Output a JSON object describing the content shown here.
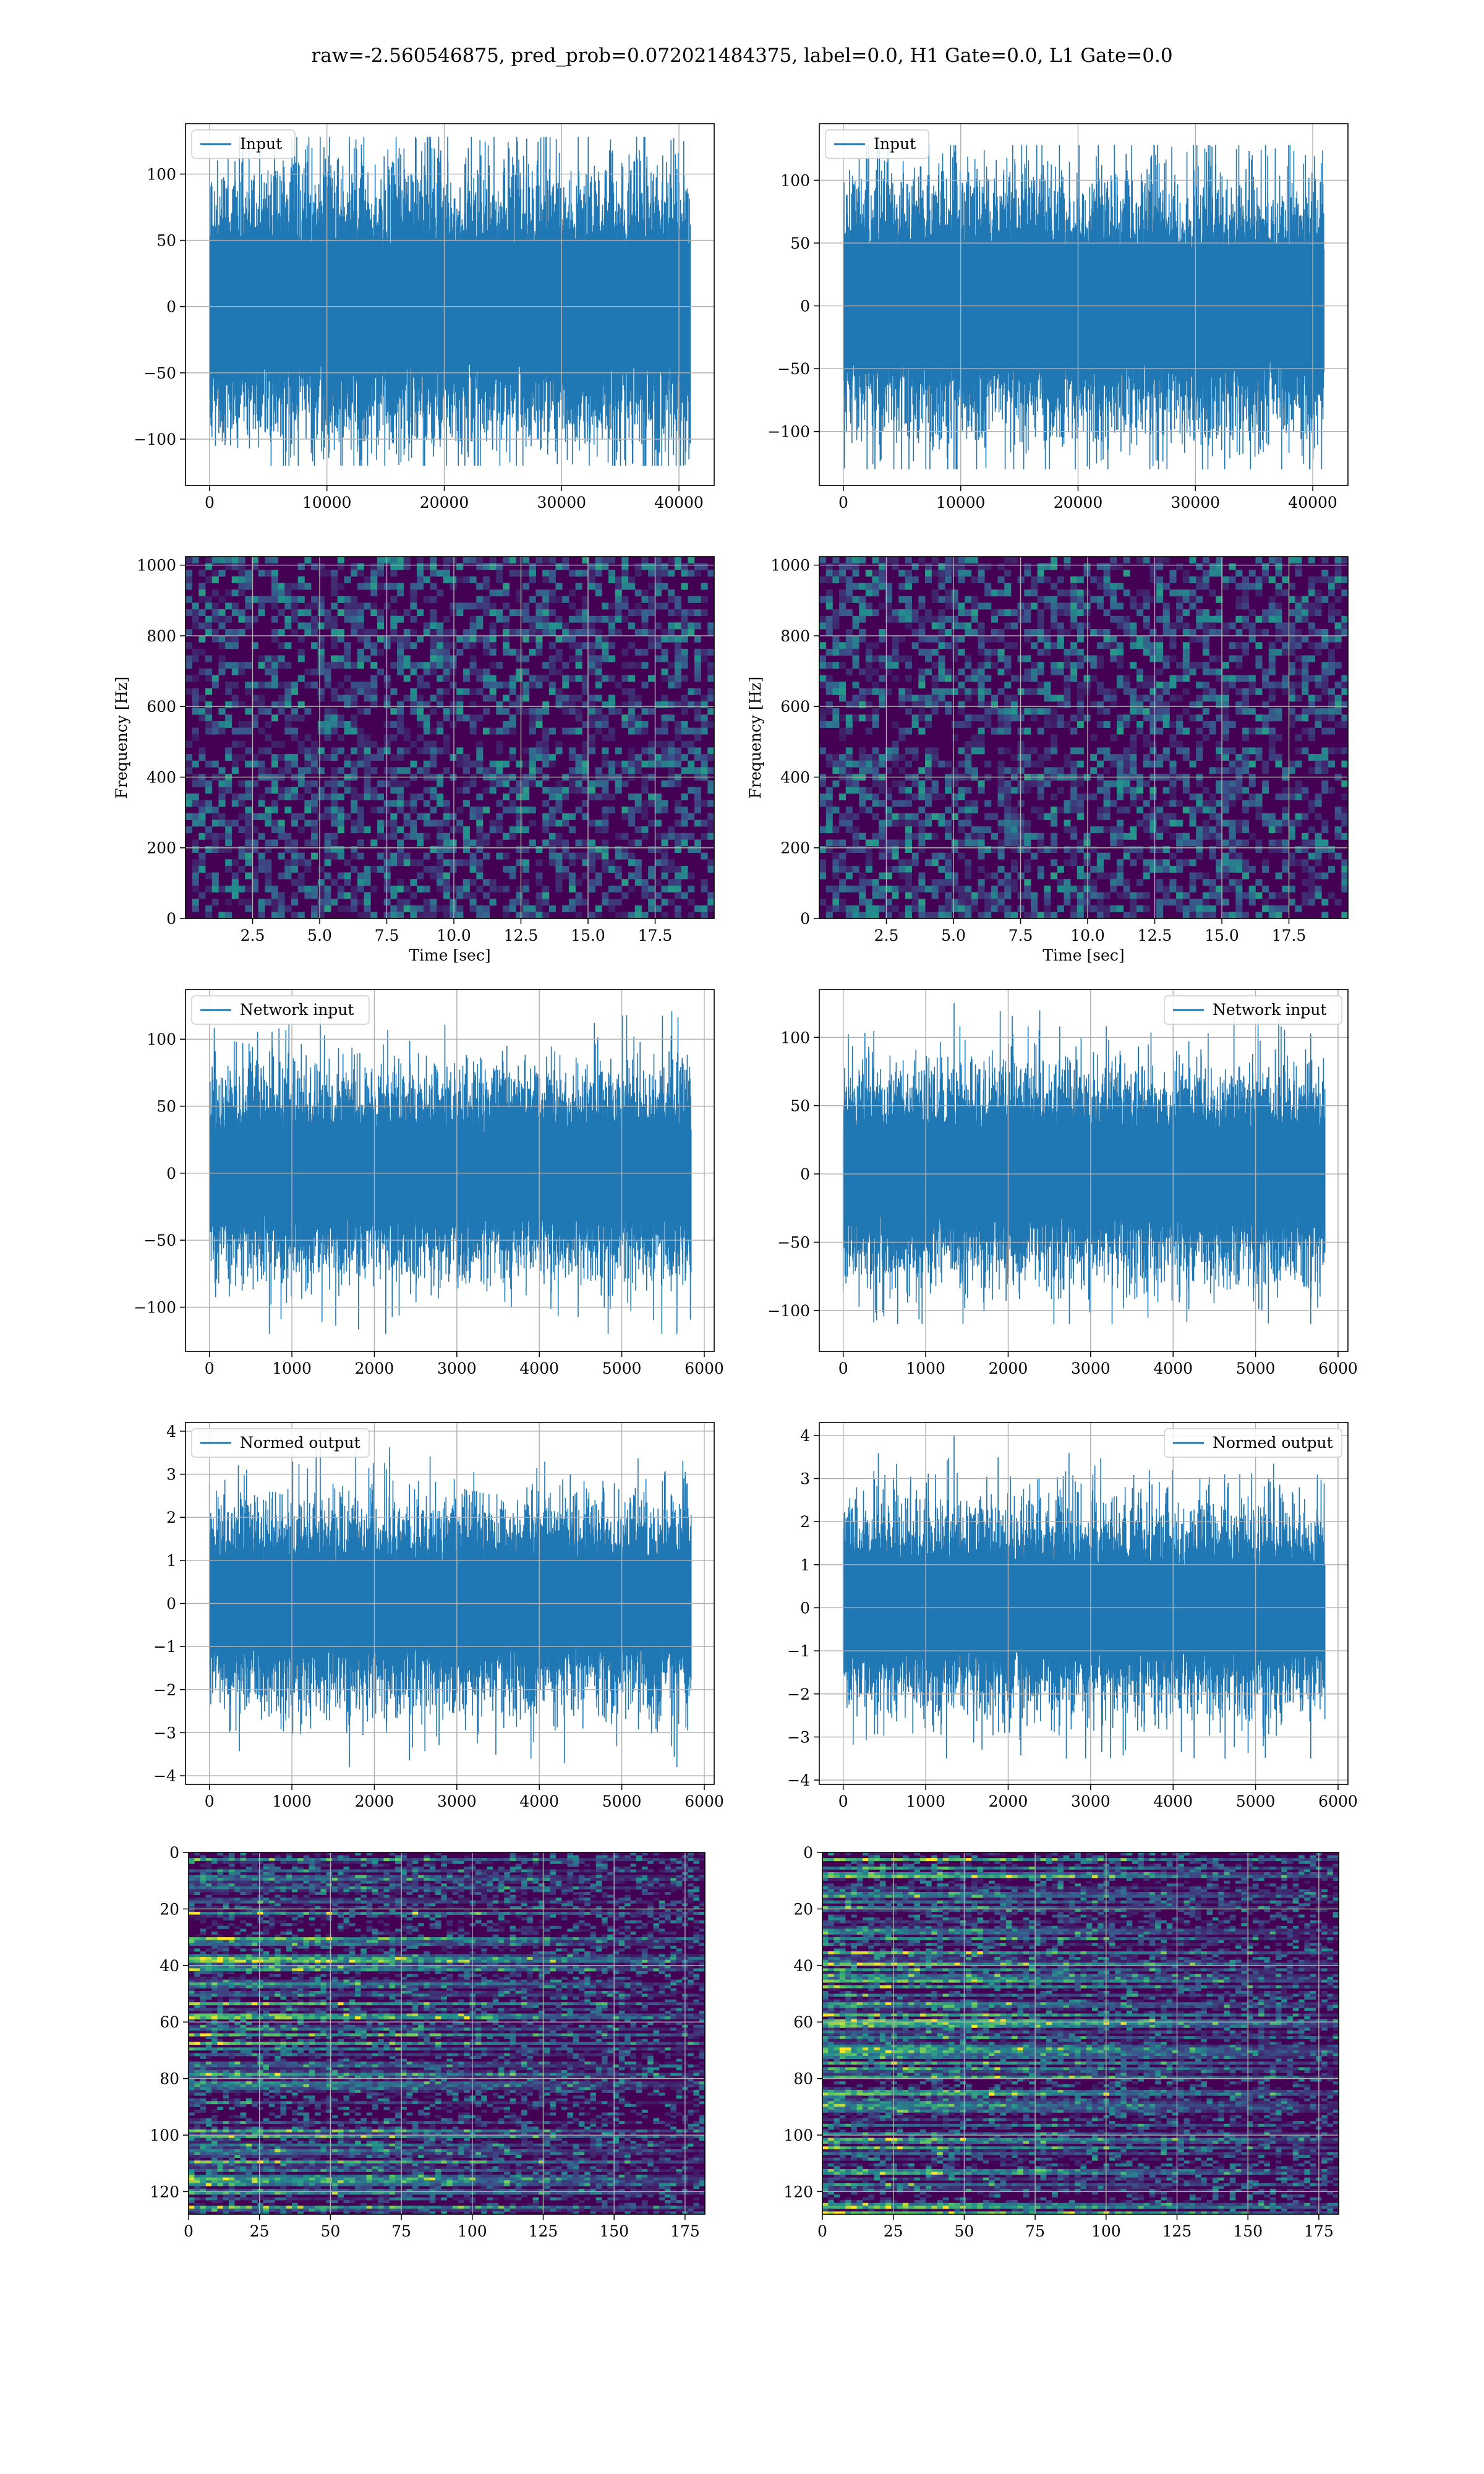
{
  "figure": {
    "suptitle": "raw=-2.560546875, pred_prob=0.072021484375, label=0.0, H1 Gate=0.0, L1 Gate=0.0"
  },
  "colors": {
    "line": "#1f77b4",
    "grid": "#b0b0b0",
    "viridis_low": "#440154",
    "viridis_mid": "#21908d",
    "viridis_high": "#fde725"
  },
  "chart_data": [
    {
      "id": "input-left",
      "type": "line",
      "series": [
        {
          "name": "Input"
        }
      ],
      "legend": "upper left",
      "xlim": [
        -2050,
        43000
      ],
      "ylim": [
        -135,
        138
      ],
      "xticks": [
        0,
        10000,
        20000,
        30000,
        40000
      ],
      "yticks": [
        -100,
        -50,
        0,
        50,
        100
      ],
      "xlabel": "",
      "ylabel": "",
      "grid": true,
      "signal": {
        "x_start": 0,
        "x_end": 40960,
        "typical_envelope": 75,
        "max": 128,
        "min": -120
      }
    },
    {
      "id": "input-right",
      "type": "line",
      "series": [
        {
          "name": "Input"
        }
      ],
      "legend": "upper left",
      "xlim": [
        -2050,
        43000
      ],
      "ylim": [
        -143,
        145
      ],
      "xticks": [
        0,
        10000,
        20000,
        30000,
        40000
      ],
      "yticks": [
        -100,
        -50,
        0,
        50,
        100
      ],
      "xlabel": "",
      "ylabel": "",
      "grid": true,
      "signal": {
        "x_start": 0,
        "x_end": 40960,
        "typical_envelope": 75,
        "max": 128,
        "min": -130
      }
    },
    {
      "id": "spectrogram-left",
      "type": "heatmap",
      "colormap": "viridis",
      "xlim": [
        0,
        19.7
      ],
      "ylim": [
        0,
        1024
      ],
      "xticks": [
        2.5,
        5.0,
        7.5,
        10.0,
        12.5,
        15.0,
        17.5
      ],
      "yticks": [
        0,
        200,
        400,
        600,
        800,
        1000
      ],
      "xtick_labels": [
        "2.5",
        "5.0",
        "7.5",
        "10.0",
        "12.5",
        "15.0",
        "17.5"
      ],
      "xlabel": "Time [sec]",
      "ylabel": "Frequency [Hz]",
      "grid": true
    },
    {
      "id": "spectrogram-right",
      "type": "heatmap",
      "colormap": "viridis",
      "xlim": [
        0,
        19.7
      ],
      "ylim": [
        0,
        1024
      ],
      "xticks": [
        2.5,
        5.0,
        7.5,
        10.0,
        12.5,
        15.0,
        17.5
      ],
      "yticks": [
        0,
        200,
        400,
        600,
        800,
        1000
      ],
      "xtick_labels": [
        "2.5",
        "5.0",
        "7.5",
        "10.0",
        "12.5",
        "15.0",
        "17.5"
      ],
      "xlabel": "Time [sec]",
      "ylabel": "Frequency [Hz]",
      "grid": true
    },
    {
      "id": "network-input-left",
      "type": "line",
      "series": [
        {
          "name": "Network input"
        }
      ],
      "legend": "upper left",
      "xlim": [
        -290,
        6120
      ],
      "ylim": [
        -133,
        137
      ],
      "xticks": [
        0,
        1000,
        2000,
        3000,
        4000,
        5000,
        6000
      ],
      "yticks": [
        -100,
        -50,
        0,
        50,
        100
      ],
      "xlabel": "",
      "ylabel": "",
      "grid": true,
      "signal": {
        "x_start": 0,
        "x_end": 5840,
        "typical_envelope": 55,
        "max": 125,
        "min": -120
      }
    },
    {
      "id": "network-input-right",
      "type": "line",
      "series": [
        {
          "name": "Network input"
        }
      ],
      "legend": "upper right",
      "xlim": [
        -290,
        6120
      ],
      "ylim": [
        -130,
        135
      ],
      "xticks": [
        0,
        1000,
        2000,
        3000,
        4000,
        5000,
        6000
      ],
      "yticks": [
        -100,
        -50,
        0,
        50,
        100
      ],
      "xlabel": "",
      "ylabel": "",
      "grid": true,
      "signal": {
        "x_start": 0,
        "x_end": 5840,
        "typical_envelope": 55,
        "max": 125,
        "min": -110
      }
    },
    {
      "id": "normed-output-left",
      "type": "line",
      "series": [
        {
          "name": "Normed output"
        }
      ],
      "legend": "upper left",
      "xlim": [
        -290,
        6120
      ],
      "ylim": [
        -4.2,
        4.2
      ],
      "xticks": [
        0,
        1000,
        2000,
        3000,
        4000,
        5000,
        6000
      ],
      "yticks": [
        -4,
        -3,
        -2,
        -1,
        0,
        1,
        2,
        3,
        4
      ],
      "xlabel": "",
      "ylabel": "",
      "grid": true,
      "signal": {
        "x_start": 0,
        "x_end": 5840,
        "typical_envelope": 1.7,
        "max": 4.0,
        "min": -3.8
      }
    },
    {
      "id": "normed-output-right",
      "type": "line",
      "series": [
        {
          "name": "Normed output"
        }
      ],
      "legend": "upper right",
      "xlim": [
        -290,
        6120
      ],
      "ylim": [
        -4.1,
        4.3
      ],
      "xticks": [
        0,
        1000,
        2000,
        3000,
        4000,
        5000,
        6000
      ],
      "yticks": [
        -4,
        -3,
        -2,
        -1,
        0,
        1,
        2,
        3,
        4
      ],
      "xlabel": "",
      "ylabel": "",
      "grid": true,
      "signal": {
        "x_start": 0,
        "x_end": 5840,
        "typical_envelope": 1.7,
        "max": 4.0,
        "min": -3.5
      }
    },
    {
      "id": "feature-map-left",
      "type": "heatmap",
      "colormap": "viridis",
      "xlim": [
        0,
        182
      ],
      "ylim": [
        128,
        0
      ],
      "xticks": [
        0,
        25,
        50,
        75,
        100,
        125,
        150,
        175
      ],
      "yticks": [
        0,
        20,
        40,
        60,
        80,
        100,
        120
      ],
      "xlabel": "",
      "ylabel": "",
      "grid": true,
      "rows": 128,
      "cols": 182
    },
    {
      "id": "feature-map-right",
      "type": "heatmap",
      "colormap": "viridis",
      "xlim": [
        0,
        182
      ],
      "ylim": [
        128,
        0
      ],
      "xticks": [
        0,
        25,
        50,
        75,
        100,
        125,
        150,
        175
      ],
      "yticks": [
        0,
        20,
        40,
        60,
        80,
        100,
        120
      ],
      "xlabel": "",
      "ylabel": "",
      "grid": true,
      "rows": 128,
      "cols": 182
    }
  ]
}
